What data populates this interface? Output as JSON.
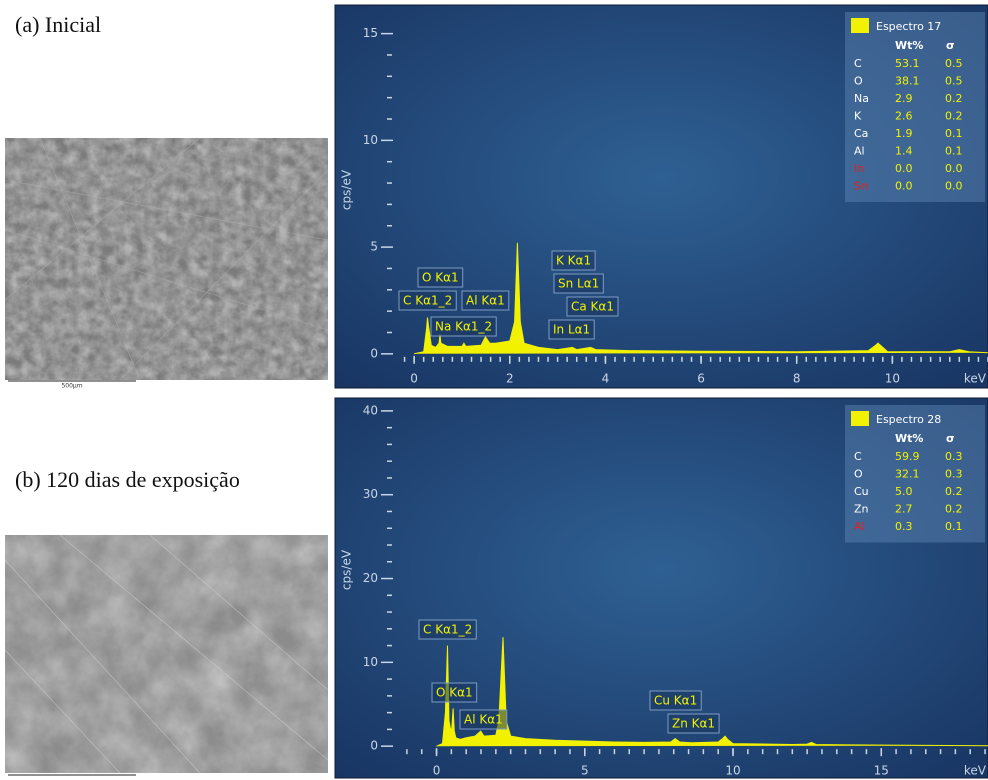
{
  "panels": [
    {
      "label": "(a) Inicial",
      "scale_bar": "500µm"
    },
    {
      "label": "(b) 120 dias de exposição"
    }
  ],
  "chart_data": [
    {
      "type": "area",
      "y_label": "cps/eV",
      "x_label": "keV",
      "color": "#f2f200",
      "xlim": [
        -0.4,
        12
      ],
      "xticks": [
        0,
        2,
        4,
        6,
        8,
        10
      ],
      "ylim": [
        -1.6,
        16.2
      ],
      "yticks": [
        0,
        5,
        10,
        15
      ],
      "x": [
        0,
        0.2,
        0.26,
        0.28,
        0.3,
        0.36,
        0.45,
        0.52,
        0.54,
        0.56,
        0.7,
        1.0,
        1.04,
        1.08,
        1.4,
        1.49,
        1.58,
        1.7,
        2.0,
        2.1,
        2.16,
        2.22,
        2.3,
        2.6,
        3.0,
        3.31,
        3.4,
        3.69,
        3.8,
        4.5,
        6,
        8,
        9.5,
        9.65,
        9.7,
        9.75,
        9.9,
        11.2,
        11.4,
        11.6,
        12
      ],
      "values": [
        0,
        0.1,
        1.2,
        1.7,
        1.3,
        0.4,
        0.3,
        0.5,
        0.9,
        0.5,
        0.35,
        0.35,
        0.5,
        0.35,
        0.4,
        0.8,
        0.5,
        0.5,
        0.6,
        1.5,
        5.2,
        1.5,
        0.5,
        0.3,
        0.2,
        0.3,
        0.2,
        0.3,
        0.2,
        0.15,
        0.12,
        0.1,
        0.15,
        0.4,
        0.5,
        0.4,
        0.1,
        0.1,
        0.2,
        0.1,
        0.05
      ],
      "annotations": [
        "O Kα1",
        "C Kα1_2",
        "Al Kα1",
        "Na Kα1_2",
        "K Kα1",
        "Sn Lα1",
        "Ca Kα1",
        "In Lα1"
      ],
      "legend": {
        "title": "Espectro 17",
        "columns": [
          "Wt%",
          "σ"
        ],
        "rows": [
          {
            "element": "C",
            "wt": "53.1",
            "sigma": "0.5",
            "name_color": "#ffffff"
          },
          {
            "element": "O",
            "wt": "38.1",
            "sigma": "0.5",
            "name_color": "#ffffff"
          },
          {
            "element": "Na",
            "wt": "2.9",
            "sigma": "0.2",
            "name_color": "#ffffff"
          },
          {
            "element": "K",
            "wt": "2.6",
            "sigma": "0.2",
            "name_color": "#ffffff"
          },
          {
            "element": "Ca",
            "wt": "1.9",
            "sigma": "0.1",
            "name_color": "#ffffff"
          },
          {
            "element": "Al",
            "wt": "1.4",
            "sigma": "0.1",
            "name_color": "#ffffff"
          },
          {
            "element": "In",
            "wt": "0.0",
            "sigma": "0.0",
            "name_color": "#e82020"
          },
          {
            "element": "Sn",
            "wt": "0.0",
            "sigma": "0.0",
            "name_color": "#e82020"
          }
        ]
      }
    },
    {
      "type": "area",
      "y_label": "cps/eV",
      "x_label": "keV",
      "color": "#f2f200",
      "xlim": [
        -1.3,
        18.6
      ],
      "xticks": [
        0,
        5,
        10,
        15
      ],
      "ylim": [
        -3.8,
        41.3
      ],
      "yticks": [
        0,
        10,
        20,
        30,
        40
      ],
      "x": [
        0,
        0.2,
        0.3,
        0.37,
        0.42,
        0.5,
        0.56,
        0.6,
        0.65,
        0.8,
        1.0,
        1.3,
        1.49,
        1.6,
        2.0,
        2.1,
        2.24,
        2.35,
        2.5,
        3.0,
        4,
        5,
        6,
        7,
        7.9,
        8.05,
        8.2,
        8.6,
        9.5,
        9.65,
        9.73,
        9.82,
        10,
        12,
        12.5,
        12.65,
        12.8,
        14,
        18.6
      ],
      "values": [
        0,
        0.3,
        4,
        12,
        3,
        1.5,
        4.5,
        1.8,
        1,
        0.8,
        1,
        1.2,
        1.8,
        1.2,
        1.3,
        3,
        13,
        3,
        1.2,
        0.9,
        0.7,
        0.6,
        0.5,
        0.45,
        0.5,
        0.9,
        0.5,
        0.4,
        0.5,
        0.9,
        1.2,
        0.8,
        0.3,
        0.2,
        0.25,
        0.45,
        0.2,
        0.15,
        0.05
      ],
      "annotations": [
        "C Kα1_2",
        "O Kα1",
        "Al Kα1",
        "Cu Kα1",
        "Zn Kα1"
      ],
      "legend": {
        "title": "Espectro 28",
        "columns": [
          "Wt%",
          "σ"
        ],
        "rows": [
          {
            "element": "C",
            "wt": "59.9",
            "sigma": "0.3",
            "name_color": "#ffffff"
          },
          {
            "element": "O",
            "wt": "32.1",
            "sigma": "0.3",
            "name_color": "#ffffff"
          },
          {
            "element": "Cu",
            "wt": "5.0",
            "sigma": "0.2",
            "name_color": "#ffffff"
          },
          {
            "element": "Zn",
            "wt": "2.7",
            "sigma": "0.2",
            "name_color": "#ffffff"
          },
          {
            "element": "Al",
            "wt": "0.3",
            "sigma": "0.1",
            "name_color": "#e82020"
          }
        ]
      }
    }
  ]
}
